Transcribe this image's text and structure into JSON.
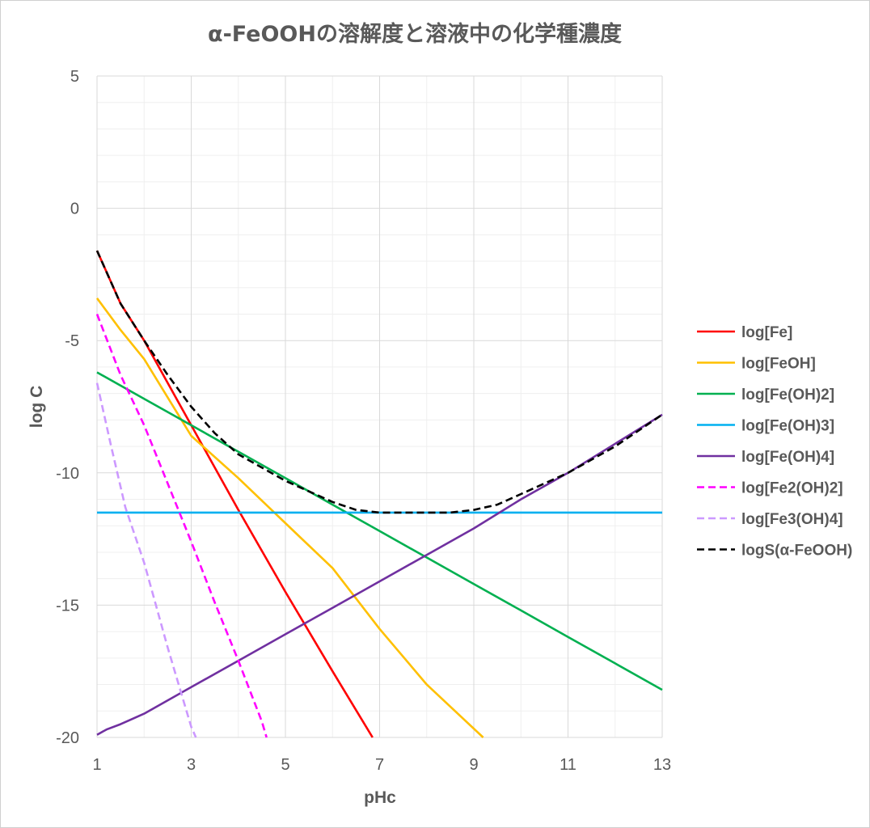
{
  "chart_data": {
    "type": "line",
    "title": "α-FeOOHの溶解度と溶液中の化学種濃度",
    "xlabel": "pHc",
    "ylabel": "log C",
    "xlim": [
      1,
      13
    ],
    "ylim": [
      -20,
      5
    ],
    "x_ticks": [
      1,
      3,
      5,
      7,
      9,
      11,
      13
    ],
    "y_ticks": [
      5,
      0,
      -5,
      -10,
      -15,
      -20
    ],
    "grid": true,
    "legend_position": "right",
    "series": [
      {
        "name": "log[Fe]",
        "color": "#ff0000",
        "dash": "solid",
        "points": [
          [
            1,
            -1.6
          ],
          [
            1.5,
            -3.6
          ],
          [
            2,
            -5
          ],
          [
            3,
            -8.2
          ],
          [
            4,
            -11.4
          ],
          [
            5,
            -14.5
          ],
          [
            6,
            -17.5
          ],
          [
            6.85,
            -20
          ]
        ]
      },
      {
        "name": "log[FeOH]",
        "color": "#ffc000",
        "dash": "solid",
        "points": [
          [
            1,
            -3.4
          ],
          [
            1.5,
            -4.6
          ],
          [
            2,
            -5.7
          ],
          [
            3,
            -8.6
          ],
          [
            4,
            -10.2
          ],
          [
            5,
            -11.9
          ],
          [
            6,
            -13.6
          ],
          [
            7,
            -15.9
          ],
          [
            8,
            -18
          ],
          [
            9.2,
            -20
          ]
        ]
      },
      {
        "name": "log[Fe(OH)2]",
        "color": "#00b050",
        "dash": "solid",
        "points": [
          [
            1,
            -6.2
          ],
          [
            2,
            -7.2
          ],
          [
            3,
            -8.2
          ],
          [
            4,
            -9.2
          ],
          [
            5,
            -10.2
          ],
          [
            6,
            -11.2
          ],
          [
            7,
            -12.2
          ],
          [
            8,
            -13.2
          ],
          [
            9,
            -14.2
          ],
          [
            10,
            -15.2
          ],
          [
            11,
            -16.2
          ],
          [
            12,
            -17.2
          ],
          [
            13,
            -18.2
          ]
        ]
      },
      {
        "name": "log[Fe(OH)3]",
        "color": "#00b0f0",
        "dash": "solid",
        "points": [
          [
            1,
            -11.5
          ],
          [
            13,
            -11.5
          ]
        ]
      },
      {
        "name": "log[Fe(OH)4]",
        "color": "#7030a0",
        "dash": "solid",
        "points": [
          [
            1,
            -19.9
          ],
          [
            1.2,
            -19.7
          ],
          [
            1.5,
            -19.5
          ],
          [
            2,
            -19.1
          ],
          [
            3,
            -18.1
          ],
          [
            4,
            -17.1
          ],
          [
            5,
            -16.1
          ],
          [
            6,
            -15.1
          ],
          [
            7,
            -14.1
          ],
          [
            8,
            -13.1
          ],
          [
            9,
            -12.1
          ],
          [
            10,
            -11.0
          ],
          [
            11,
            -10.0
          ],
          [
            12,
            -8.9
          ],
          [
            13,
            -7.8
          ]
        ]
      },
      {
        "name": "log[Fe2(OH)2]",
        "color": "#ff00ff",
        "dash": "dashed",
        "points": [
          [
            1,
            -4.0
          ],
          [
            1.5,
            -6.3
          ],
          [
            2,
            -8.2
          ],
          [
            2.5,
            -10.4
          ],
          [
            3,
            -12.6
          ],
          [
            3.5,
            -14.9
          ],
          [
            4,
            -17.1
          ],
          [
            4.5,
            -19.4
          ],
          [
            4.6,
            -20
          ]
        ]
      },
      {
        "name": "log[Fe3(OH)4]",
        "color": "#cc99ff",
        "dash": "dashed",
        "points": [
          [
            1,
            -6.6
          ],
          [
            1.3,
            -9.0
          ],
          [
            1.6,
            -11.3
          ],
          [
            2,
            -13.4
          ],
          [
            2.5,
            -16.6
          ],
          [
            3,
            -19.6
          ],
          [
            3.1,
            -20
          ]
        ]
      },
      {
        "name": "logS(α-FeOOH)",
        "color": "#000000",
        "dash": "dashed",
        "points": [
          [
            1,
            -1.6
          ],
          [
            1.5,
            -3.6
          ],
          [
            2,
            -5.0
          ],
          [
            2.5,
            -6.3
          ],
          [
            3,
            -7.5
          ],
          [
            3.5,
            -8.5
          ],
          [
            4,
            -9.3
          ],
          [
            4.5,
            -9.8
          ],
          [
            5,
            -10.3
          ],
          [
            5.5,
            -10.7
          ],
          [
            6,
            -11.1
          ],
          [
            6.5,
            -11.4
          ],
          [
            7,
            -11.5
          ],
          [
            7.5,
            -11.5
          ],
          [
            8,
            -11.5
          ],
          [
            8.5,
            -11.5
          ],
          [
            9,
            -11.4
          ],
          [
            9.5,
            -11.2
          ],
          [
            10,
            -10.8
          ],
          [
            11,
            -10.0
          ],
          [
            12,
            -9.0
          ],
          [
            13,
            -7.8
          ]
        ]
      }
    ]
  }
}
